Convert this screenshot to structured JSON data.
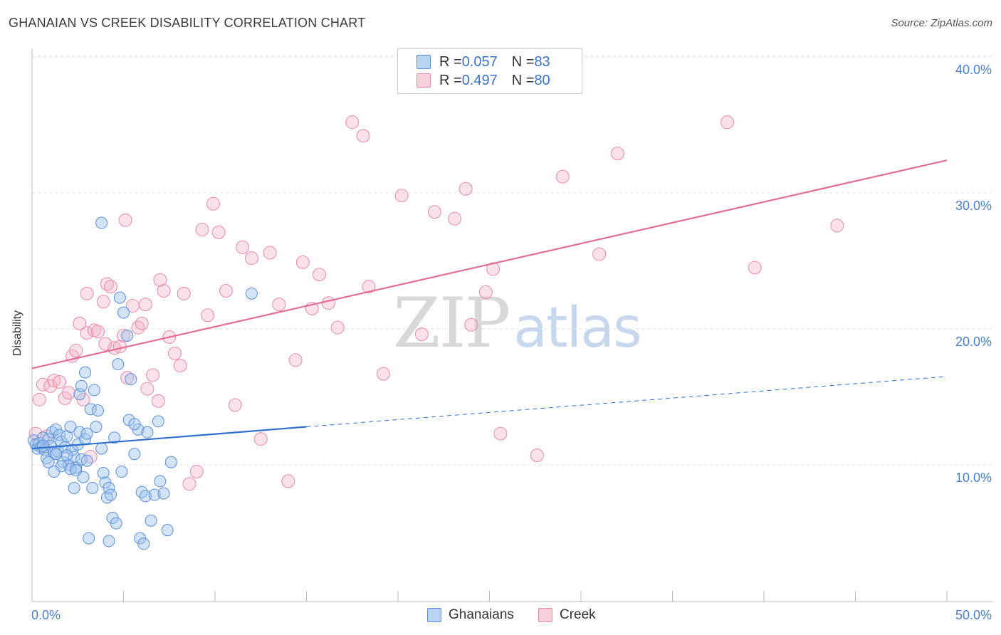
{
  "title": "GHANAIAN VS CREEK DISABILITY CORRELATION CHART",
  "source": "Source: ZipAtlas.com",
  "colors": {
    "blue_fill": "rgba(160,195,238,0.45)",
    "blue_stroke": "#5b8fd8",
    "blue_line": "#2f6fcf",
    "pink_fill": "rgba(245,180,200,0.40)",
    "pink_stroke": "#e88aa8",
    "pink_line": "#e26d96",
    "tick": "#4a7fd0"
  },
  "legend": {
    "rows": [
      {
        "r_label": "R = ",
        "r_value": "0.057",
        "n_label": "N = ",
        "n_value": "83"
      },
      {
        "r_label": "R = ",
        "r_value": "0.497",
        "n_label": "N = ",
        "n_value": "80"
      }
    ]
  },
  "bottom_legend": {
    "ghanaians": "Ghanaians",
    "creek": "Creek"
  },
  "watermark": {
    "zip": "ZIP",
    "atlas": "atlas"
  },
  "chart_data": {
    "type": "scatter",
    "xlabel": "",
    "ylabel": "Disability",
    "xlim": [
      0,
      50
    ],
    "ylim": [
      0,
      41
    ],
    "x_tick_labels": [
      "0.0%",
      "50.0%"
    ],
    "y_ticks": [
      10,
      20,
      30,
      40
    ],
    "y_tick_labels": [
      "10.0%",
      "20.0%",
      "30.0%",
      "40.0%"
    ],
    "grid": true,
    "legend_position": "top-center",
    "series": [
      {
        "name": "Ghanaians",
        "r": 0.057,
        "n": 83,
        "trend": {
          "x": [
            0,
            15
          ],
          "y": [
            11.2,
            12.8
          ],
          "dashed_to": [
            50,
            16.5
          ]
        },
        "points": [
          [
            0.1,
            11.8
          ],
          [
            0.2,
            11.5
          ],
          [
            0.3,
            11.2
          ],
          [
            0.4,
            11.6
          ],
          [
            0.5,
            11.3
          ],
          [
            0.6,
            12.0
          ],
          [
            0.7,
            11.1
          ],
          [
            0.8,
            10.5
          ],
          [
            0.9,
            11.9
          ],
          [
            1.0,
            11.4
          ],
          [
            1.1,
            12.4
          ],
          [
            1.2,
            10.9
          ],
          [
            1.3,
            12.6
          ],
          [
            1.4,
            11.0
          ],
          [
            1.5,
            12.2
          ],
          [
            1.6,
            11.7
          ],
          [
            1.7,
            10.2
          ],
          [
            1.8,
            11.3
          ],
          [
            1.9,
            12.1
          ],
          [
            2.0,
            10.0
          ],
          [
            2.1,
            12.8
          ],
          [
            2.2,
            11.1
          ],
          [
            2.3,
            10.6
          ],
          [
            2.4,
            9.8
          ],
          [
            2.5,
            11.5
          ],
          [
            2.6,
            12.4
          ],
          [
            2.7,
            10.4
          ],
          [
            2.8,
            9.1
          ],
          [
            2.9,
            11.9
          ],
          [
            3.0,
            10.3
          ],
          [
            1.3,
            10.8
          ],
          [
            1.6,
            9.9
          ],
          [
            1.9,
            10.7
          ],
          [
            2.1,
            9.7
          ],
          [
            2.3,
            8.3
          ],
          [
            2.6,
            15.2
          ],
          [
            2.7,
            15.8
          ],
          [
            2.9,
            16.8
          ],
          [
            3.2,
            14.1
          ],
          [
            3.4,
            15.5
          ],
          [
            3.5,
            12.8
          ],
          [
            3.8,
            11.2
          ],
          [
            3.9,
            9.4
          ],
          [
            4.0,
            8.7
          ],
          [
            4.1,
            7.6
          ],
          [
            4.2,
            8.3
          ],
          [
            4.3,
            7.8
          ],
          [
            4.4,
            6.1
          ],
          [
            4.5,
            12.0
          ],
          [
            4.6,
            5.7
          ],
          [
            4.7,
            17.4
          ],
          [
            4.8,
            22.3
          ],
          [
            4.9,
            9.5
          ],
          [
            5.0,
            21.2
          ],
          [
            5.2,
            19.5
          ],
          [
            5.3,
            13.3
          ],
          [
            5.4,
            16.3
          ],
          [
            5.6,
            10.8
          ],
          [
            5.8,
            12.6
          ],
          [
            6.0,
            8.0
          ],
          [
            6.2,
            7.7
          ],
          [
            6.3,
            12.4
          ],
          [
            6.5,
            5.9
          ],
          [
            6.7,
            7.8
          ],
          [
            6.9,
            13.2
          ],
          [
            7.0,
            8.8
          ],
          [
            7.2,
            7.9
          ],
          [
            7.4,
            5.2
          ],
          [
            7.6,
            10.2
          ],
          [
            5.9,
            4.6
          ],
          [
            6.1,
            4.2
          ],
          [
            4.2,
            4.4
          ],
          [
            3.1,
            4.6
          ],
          [
            3.3,
            8.3
          ],
          [
            2.4,
            9.6
          ],
          [
            3.6,
            14.0
          ],
          [
            3.0,
            12.3
          ],
          [
            0.6,
            11.4
          ],
          [
            0.9,
            10.2
          ],
          [
            1.2,
            9.5
          ],
          [
            3.8,
            27.8
          ],
          [
            12.0,
            22.6
          ],
          [
            5.6,
            13.0
          ]
        ]
      },
      {
        "name": "Creek",
        "r": 0.497,
        "n": 80,
        "trend": {
          "x": [
            0,
            50
          ],
          "y": [
            17.1,
            32.4
          ]
        },
        "points": [
          [
            0.2,
            12.3
          ],
          [
            0.4,
            14.8
          ],
          [
            0.6,
            15.9
          ],
          [
            0.8,
            12.1
          ],
          [
            1.0,
            15.8
          ],
          [
            1.2,
            16.2
          ],
          [
            1.5,
            16.1
          ],
          [
            1.8,
            14.9
          ],
          [
            2.0,
            15.3
          ],
          [
            2.2,
            18.0
          ],
          [
            2.4,
            18.4
          ],
          [
            2.6,
            20.4
          ],
          [
            2.8,
            14.8
          ],
          [
            3.0,
            19.7
          ],
          [
            3.2,
            10.6
          ],
          [
            3.4,
            19.9
          ],
          [
            3.6,
            19.8
          ],
          [
            3.9,
            22.0
          ],
          [
            4.1,
            23.3
          ],
          [
            4.3,
            23.1
          ],
          [
            4.5,
            18.6
          ],
          [
            4.8,
            18.7
          ],
          [
            5.0,
            19.5
          ],
          [
            5.2,
            16.4
          ],
          [
            5.5,
            21.7
          ],
          [
            5.8,
            20.1
          ],
          [
            6.0,
            20.4
          ],
          [
            6.3,
            15.6
          ],
          [
            6.6,
            16.6
          ],
          [
            6.9,
            14.7
          ],
          [
            7.2,
            22.8
          ],
          [
            7.5,
            19.4
          ],
          [
            7.8,
            18.2
          ],
          [
            8.1,
            17.3
          ],
          [
            8.3,
            22.6
          ],
          [
            8.6,
            8.6
          ],
          [
            9.0,
            9.5
          ],
          [
            9.3,
            27.3
          ],
          [
            9.6,
            21.0
          ],
          [
            9.9,
            29.2
          ],
          [
            10.2,
            27.1
          ],
          [
            10.6,
            22.8
          ],
          [
            11.1,
            14.4
          ],
          [
            11.5,
            26.0
          ],
          [
            12.0,
            25.2
          ],
          [
            12.5,
            11.9
          ],
          [
            13.0,
            25.6
          ],
          [
            13.5,
            21.8
          ],
          [
            14.0,
            8.8
          ],
          [
            14.4,
            17.7
          ],
          [
            14.8,
            24.9
          ],
          [
            15.3,
            21.5
          ],
          [
            15.7,
            24.0
          ],
          [
            16.2,
            21.9
          ],
          [
            16.7,
            20.1
          ],
          [
            17.5,
            35.2
          ],
          [
            18.1,
            34.2
          ],
          [
            18.4,
            23.1
          ],
          [
            19.2,
            16.7
          ],
          [
            20.2,
            29.8
          ],
          [
            21.3,
            19.6
          ],
          [
            22.0,
            28.6
          ],
          [
            23.1,
            28.1
          ],
          [
            23.7,
            30.3
          ],
          [
            24.0,
            20.3
          ],
          [
            24.8,
            22.7
          ],
          [
            25.2,
            24.4
          ],
          [
            25.6,
            12.3
          ],
          [
            27.6,
            10.7
          ],
          [
            29.0,
            31.2
          ],
          [
            31.0,
            25.5
          ],
          [
            32.0,
            32.9
          ],
          [
            38.0,
            35.2
          ],
          [
            39.5,
            24.5
          ],
          [
            44.0,
            27.6
          ],
          [
            4.0,
            18.9
          ],
          [
            5.1,
            28.0
          ],
          [
            6.2,
            21.8
          ],
          [
            7.0,
            23.6
          ],
          [
            3.0,
            22.6
          ]
        ]
      }
    ]
  }
}
